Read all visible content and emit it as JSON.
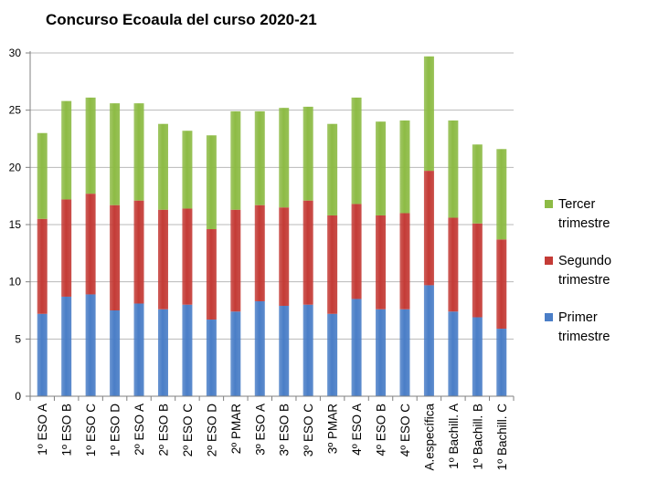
{
  "chart_data": {
    "type": "bar",
    "stacked": true,
    "title": "Concurso Ecoaula del curso 2020-21",
    "xlabel": "",
    "ylabel": "",
    "ylim": [
      0,
      30
    ],
    "yticks": [
      0,
      5,
      10,
      15,
      20,
      25,
      30
    ],
    "grid": true,
    "legend_position": "right",
    "categories": [
      "1º ESO A",
      "1º ESO B",
      "1º ESO C",
      "1º ESO D",
      "2º ESO A",
      "2º ESO B",
      "2º ESO C",
      "2º ESO D",
      "2º PMAR",
      "3º ESO A",
      "3º ESO B",
      "3º ESO C",
      "3º PMAR",
      "4º ESO A",
      "4º ESO B",
      "4º ESO C",
      "A.específica",
      "1º Bachill. A",
      "1º Bachill. B",
      "1º Bachill. C"
    ],
    "series": [
      {
        "name": "Primer trimestre",
        "name_lines": [
          "Primer",
          "trimestre"
        ],
        "color": "#4a7ec7",
        "values": [
          7.2,
          8.7,
          8.9,
          7.5,
          8.1,
          7.6,
          8.0,
          6.7,
          7.4,
          8.3,
          7.9,
          8.0,
          7.2,
          8.5,
          7.6,
          7.6,
          9.7,
          7.4,
          6.9,
          5.9
        ]
      },
      {
        "name": "Segundo trimestre",
        "name_lines": [
          "Segundo",
          "trimestre"
        ],
        "color": "#c43b36",
        "values": [
          8.3,
          8.5,
          8.8,
          9.2,
          9.0,
          8.7,
          8.4,
          7.9,
          8.9,
          8.4,
          8.6,
          9.1,
          8.6,
          8.3,
          8.2,
          8.4,
          10.0,
          8.2,
          8.2,
          7.8
        ]
      },
      {
        "name": "Tercer trimestre",
        "name_lines": [
          "Tercer",
          "trimestre"
        ],
        "color": "#8dbb45",
        "values": [
          7.5,
          8.6,
          8.4,
          8.9,
          8.5,
          7.5,
          6.8,
          8.2,
          8.6,
          8.2,
          8.7,
          8.2,
          8.0,
          9.3,
          8.2,
          8.1,
          10.0,
          8.5,
          6.9,
          7.9
        ]
      }
    ]
  }
}
